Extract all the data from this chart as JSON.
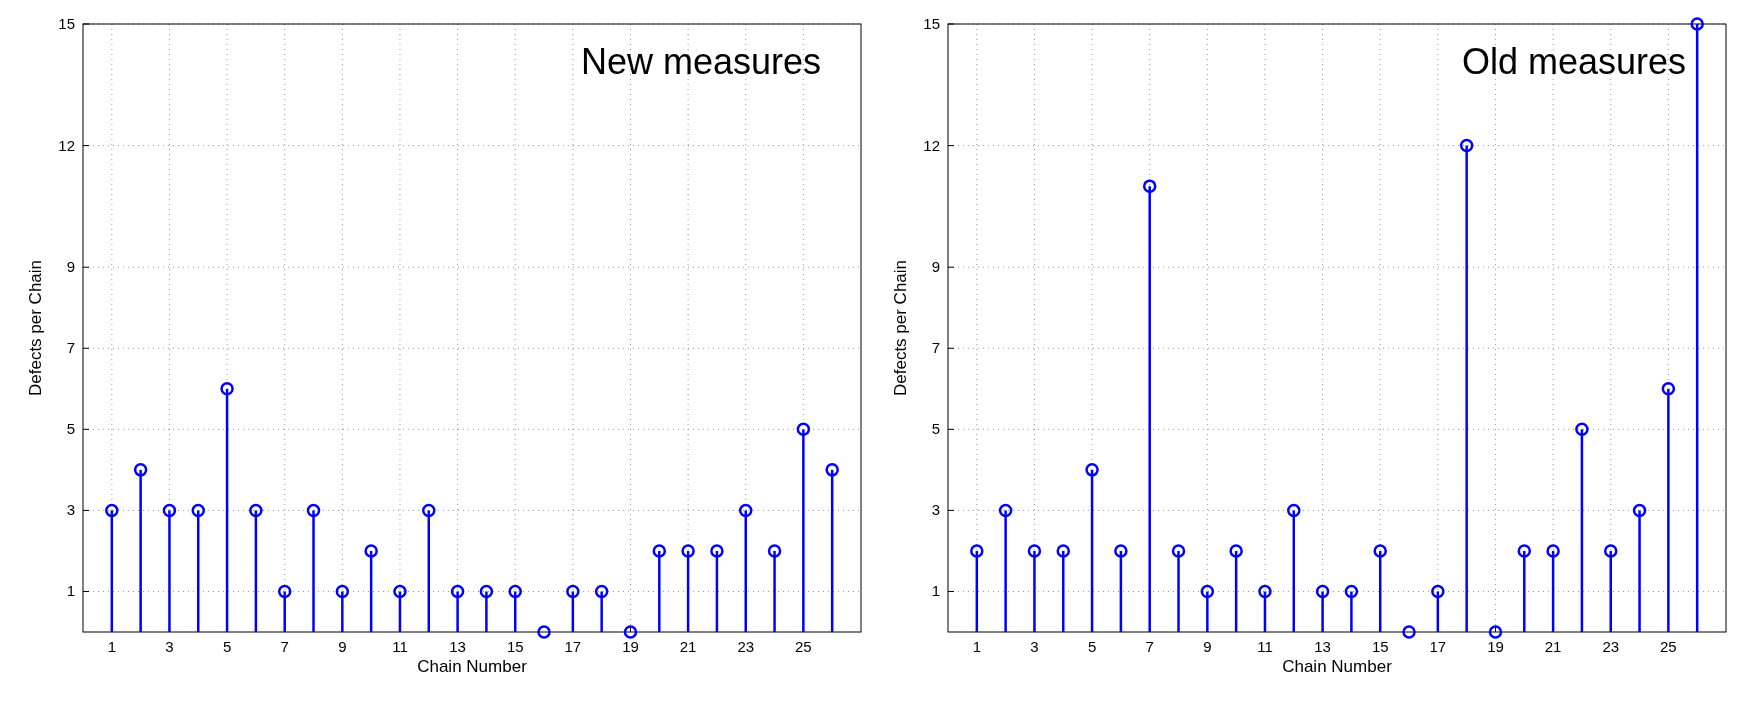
{
  "chart_data": [
    {
      "type": "lollipop",
      "xlabel": "Chain Number",
      "ylabel": "Defects per Chain",
      "annotations": [
        "New measures"
      ],
      "x": [
        1,
        2,
        3,
        4,
        5,
        6,
        7,
        8,
        9,
        10,
        11,
        12,
        13,
        14,
        15,
        16,
        17,
        18,
        19,
        20,
        21,
        22,
        23,
        24,
        25,
        26
      ],
      "values": [
        3,
        4,
        3,
        3,
        6,
        3,
        1,
        3,
        1,
        2,
        1,
        3,
        1,
        1,
        1,
        0,
        1,
        1,
        0,
        2,
        2,
        2,
        3,
        2,
        5,
        4
      ],
      "color": "#0000ff",
      "xlim": [
        0,
        27
      ],
      "xticks": [
        1,
        3,
        5,
        7,
        9,
        11,
        13,
        15,
        17,
        19,
        21,
        23,
        25
      ],
      "ylim": [
        0,
        15
      ],
      "yticks": [
        1,
        3,
        5,
        7,
        9,
        12,
        15
      ],
      "grid": true,
      "marker": "circle"
    },
    {
      "type": "lollipop",
      "xlabel": "Chain Number",
      "ylabel": "Defects per Chain",
      "annotations": [
        "Old measures"
      ],
      "x": [
        1,
        2,
        3,
        4,
        5,
        6,
        7,
        8,
        9,
        10,
        11,
        12,
        13,
        14,
        15,
        16,
        17,
        18,
        19,
        20,
        21,
        22,
        23,
        24,
        25,
        26
      ],
      "values": [
        2,
        3,
        2,
        2,
        4,
        2,
        11,
        2,
        1,
        2,
        1,
        3,
        1,
        1,
        2,
        0,
        1,
        12,
        0,
        2,
        2,
        5,
        2,
        3,
        6,
        15
      ],
      "color": "#0000ff",
      "xlim": [
        0,
        27
      ],
      "xticks": [
        1,
        3,
        5,
        7,
        9,
        11,
        13,
        15,
        17,
        19,
        21,
        23,
        25
      ],
      "ylim": [
        0,
        15
      ],
      "yticks": [
        1,
        3,
        5,
        7,
        9,
        12,
        15
      ],
      "grid": true,
      "marker": "circle"
    }
  ]
}
